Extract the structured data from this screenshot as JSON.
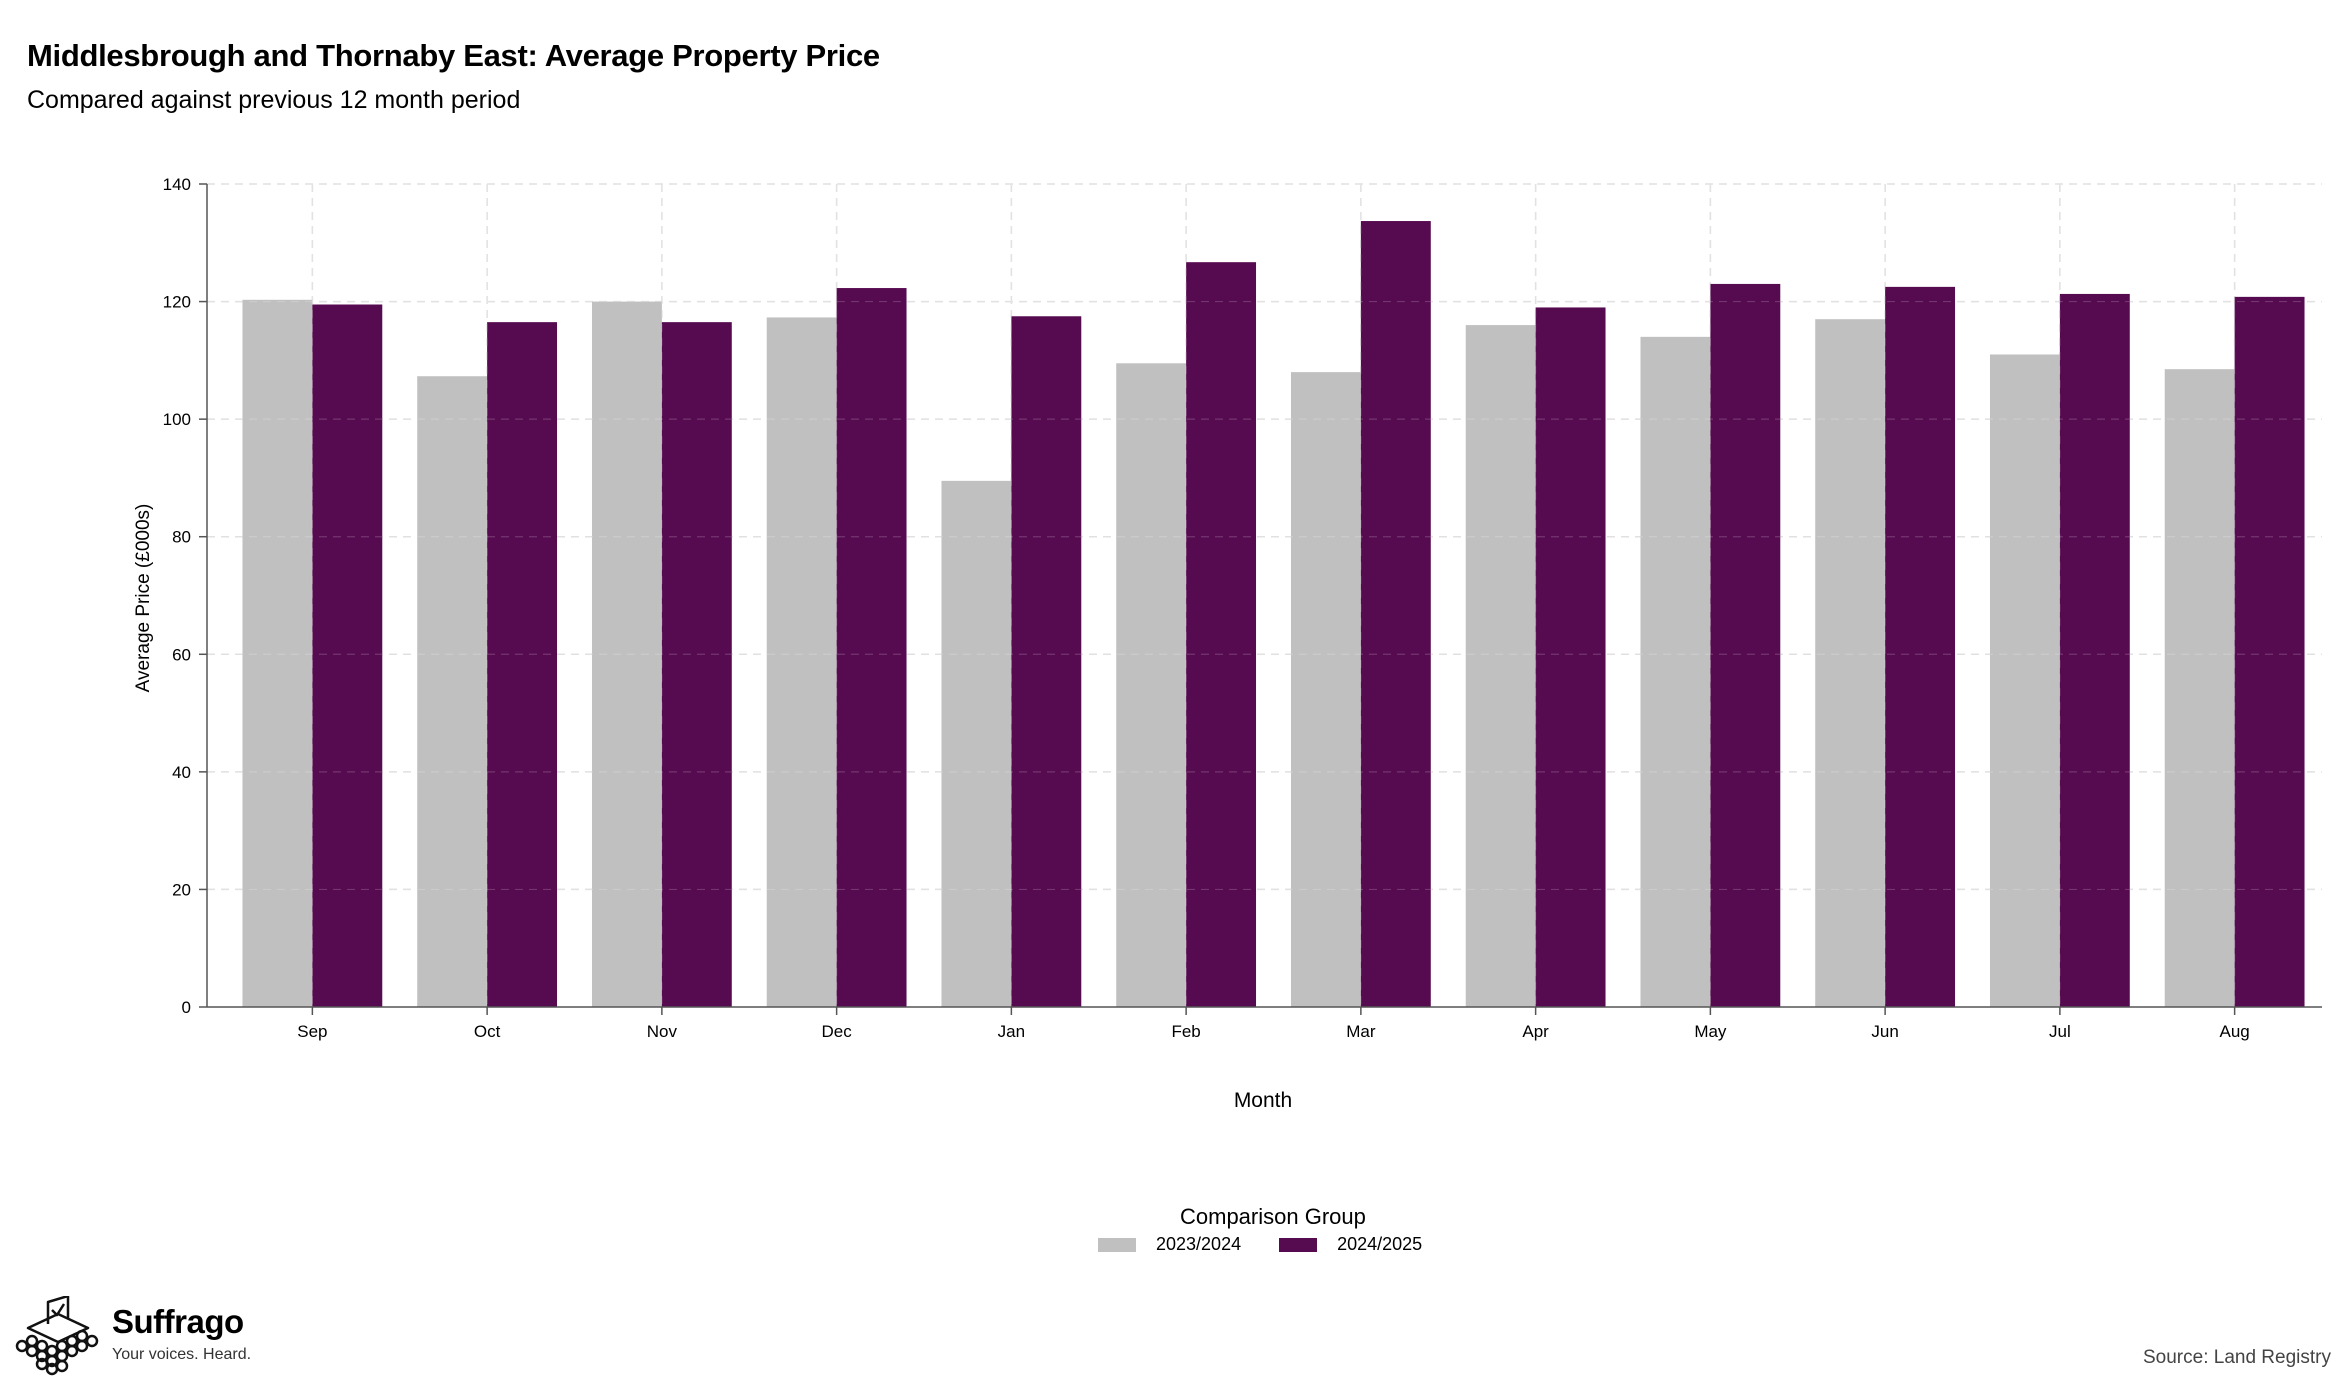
{
  "header": {
    "title": "Middlesbrough and Thornaby East: Average Property Price",
    "subtitle": "Compared against previous 12 month period"
  },
  "legend": {
    "title": "Comparison Group"
  },
  "brand": {
    "name": "Suffrago",
    "tagline": "Your voices. Heard."
  },
  "source": "Source: Land Registry",
  "chart_data": {
    "type": "bar",
    "xlabel": "Month",
    "ylabel": "Average Price (£000s)",
    "ylim": [
      0,
      140
    ],
    "yticks": [
      0,
      20,
      40,
      60,
      80,
      100,
      120,
      140
    ],
    "grid": true,
    "legend_position": "bottom",
    "categories": [
      "Sep",
      "Oct",
      "Nov",
      "Dec",
      "Jan",
      "Feb",
      "Mar",
      "Apr",
      "May",
      "Jun",
      "Jul",
      "Aug"
    ],
    "series": [
      {
        "name": "2023/2024",
        "color": "#c0c0c0",
        "values": [
          120.3,
          107.3,
          120.0,
          117.3,
          89.5,
          109.5,
          108.0,
          116.0,
          114.0,
          117.0,
          111.0,
          108.5
        ]
      },
      {
        "name": "2024/2025",
        "color": "#560a50",
        "values": [
          119.5,
          116.5,
          116.5,
          122.3,
          117.5,
          126.7,
          133.7,
          119.0,
          123.0,
          122.5,
          121.3,
          120.8
        ]
      }
    ]
  }
}
